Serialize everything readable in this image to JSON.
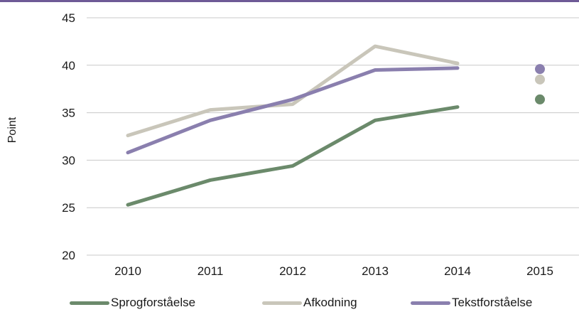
{
  "chart_data": {
    "type": "line",
    "x": [
      "2010",
      "2011",
      "2012",
      "2013",
      "2014",
      "2015"
    ],
    "ylabel": "Point",
    "ylim": [
      20,
      45
    ],
    "yticks": [
      20,
      25,
      30,
      35,
      40,
      45
    ],
    "grid": true,
    "legend_position": "bottom",
    "series": [
      {
        "name": "Sprogforståelse",
        "color": "#6b8a6b",
        "values": [
          25.3,
          27.9,
          29.4,
          34.2,
          35.6,
          null
        ],
        "marker_2015": 36.4
      },
      {
        "name": "Afkodning",
        "color": "#c9c6ba",
        "values": [
          32.6,
          35.3,
          35.9,
          42.0,
          40.2,
          null
        ],
        "marker_2015": 38.5
      },
      {
        "name": "Tekstforståelse",
        "color": "#8a7fae",
        "values": [
          30.8,
          34.2,
          36.4,
          39.5,
          39.7,
          null
        ],
        "marker_2015": 39.6
      }
    ]
  },
  "colors": {
    "top_rule": "#6e5a96",
    "grid": "#c8c8c8"
  }
}
